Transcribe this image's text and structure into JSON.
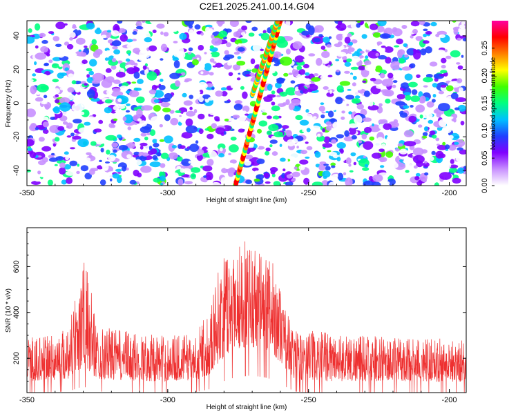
{
  "title": "C2E1.2025.241.00.14.G04",
  "chart_data": [
    {
      "type": "heatmap",
      "xlabel": "Height of straight line (km)",
      "ylabel": "Frequency (Hz)",
      "xlim": [
        -350,
        -194
      ],
      "ylim": [
        -49,
        49
      ],
      "xticks": [
        "-350",
        "-300",
        "-250",
        "-200"
      ],
      "yticks": [
        "40",
        "20",
        "0",
        "-20",
        "-40"
      ],
      "colorbar": {
        "label": "Normalized spectral amplitude",
        "range": [
          0,
          0.3
        ],
        "ticks": [
          "0.00",
          "0.05",
          "0.10",
          "0.15",
          "0.20",
          "0.25"
        ],
        "colors": [
          "#ffffff",
          "#c890ff",
          "#8000ff",
          "#2040ff",
          "#00c0ff",
          "#00ff80",
          "#40ff00",
          "#ffff00",
          "#ff8000",
          "#ff0000",
          "#ff00a0"
        ]
      },
      "features": [
        {
          "x_start": -276,
          "x_end": -260,
          "y_start": -49,
          "y_end": 49,
          "peak": 0.3
        },
        {
          "x_start": -270,
          "x_end": -261,
          "y_start": 5,
          "y_end": 49,
          "peak": 0.27
        }
      ]
    },
    {
      "type": "line",
      "xlabel": "Height of straight line (km)",
      "ylabel": "SNR (10 * v/v)",
      "xlim": [
        -350,
        -194
      ],
      "ylim": [
        50,
        770
      ],
      "xticks": [
        "-350",
        "-300",
        "-250",
        "-200"
      ],
      "yticks": [
        "600",
        "400",
        "200"
      ],
      "color": "#ee3030",
      "envelope": {
        "x": [
          -350,
          -340,
          -335,
          -332,
          -330,
          -328,
          -325,
          -320,
          -310,
          -300,
          -290,
          -285,
          -282,
          -278,
          -275,
          -270,
          -265,
          -262,
          -258,
          -255,
          -250,
          -240,
          -230,
          -220,
          -210,
          -200,
          -194
        ],
        "low": [
          100,
          105,
          110,
          140,
          150,
          140,
          110,
          105,
          100,
          100,
          105,
          130,
          180,
          220,
          240,
          250,
          230,
          210,
          150,
          110,
          100,
          100,
          100,
          100,
          100,
          95,
          95
        ],
        "high": [
          290,
          300,
          350,
          560,
          640,
          560,
          340,
          330,
          310,
          300,
          310,
          420,
          600,
          680,
          720,
          700,
          680,
          600,
          420,
          330,
          320,
          310,
          300,
          290,
          290,
          285,
          285
        ]
      }
    }
  ]
}
